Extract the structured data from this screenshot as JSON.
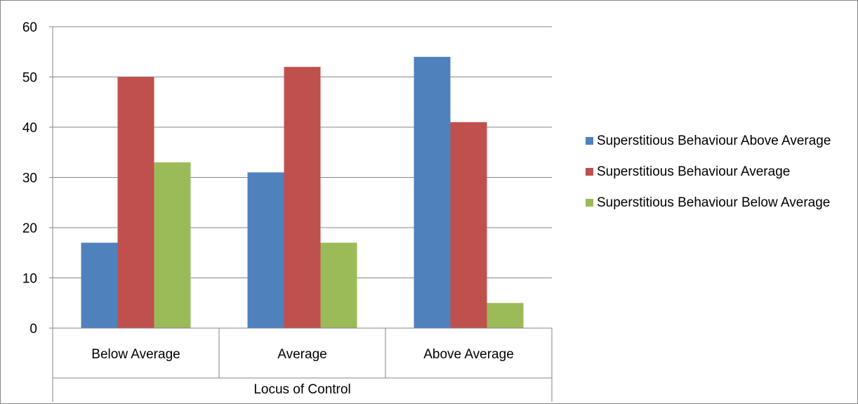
{
  "chart_data": {
    "type": "bar",
    "title": "",
    "xlabel": "Locus of Control",
    "ylabel": "",
    "ylim": [
      0,
      60
    ],
    "yticks": [
      "0",
      "10",
      "20",
      "30",
      "40",
      "50",
      "60"
    ],
    "grid": true,
    "legend_position": "right",
    "categories": [
      "Below Average",
      "Average",
      "Above Average"
    ],
    "series": [
      {
        "name": "Superstitious Behaviour Above Average",
        "color": "#4F81BD",
        "values": [
          17,
          31,
          54
        ]
      },
      {
        "name": "Superstitious Behaviour Average",
        "color": "#C0504D",
        "values": [
          50,
          52,
          41
        ]
      },
      {
        "name": "Superstitious Behaviour Below Average",
        "color": "#9BBB59",
        "values": [
          33,
          17,
          5
        ]
      }
    ]
  }
}
